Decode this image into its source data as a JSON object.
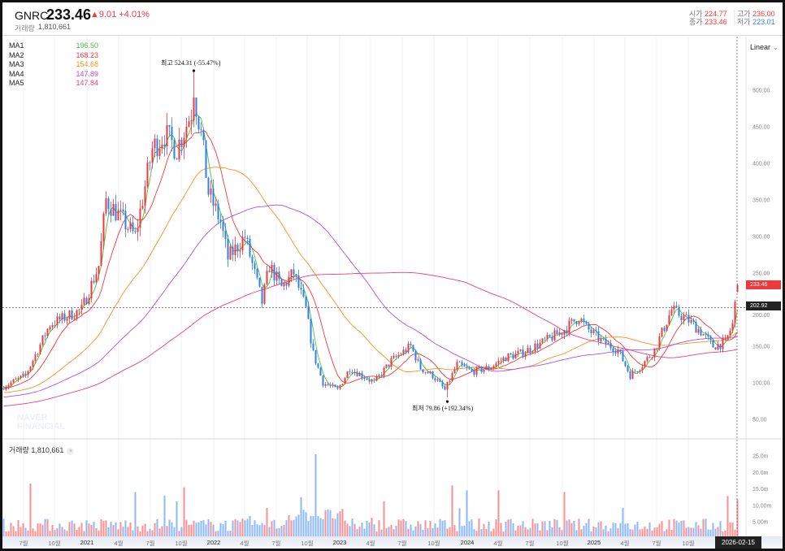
{
  "header": {
    "symbol": "GNRC",
    "price": "233.46",
    "change": "▲9.01 +4.01%",
    "volume_label": "거래량",
    "volume": "1,810,661",
    "open_label": "시가",
    "open": "224.77",
    "high_label": "고가",
    "high": "236.00",
    "close_label": "종가",
    "close": "233.46",
    "low_label": "저가",
    "low": "223.01"
  },
  "legend": [
    {
      "name": "MA1",
      "value": "196.50",
      "color": "#4cc03c"
    },
    {
      "name": "MA2",
      "value": "168.23",
      "color": "#f0393c"
    },
    {
      "name": "MA3",
      "value": "154.68",
      "color": "#f7931e"
    },
    {
      "name": "MA4",
      "value": "147.89",
      "color": "#a855e0"
    },
    {
      "name": "MA5",
      "value": "147.84",
      "color": "#ec3f7c"
    }
  ],
  "scale_mode": "Linear",
  "watermark": [
    "NAVER",
    "FINANCIAL"
  ],
  "volume_pane": {
    "label": "거래량 1,810,661",
    "close_icon": "×"
  },
  "annotations": {
    "high": "최고  524.31 (-55.47%)",
    "low": "최저  79.86 (+192.34%)"
  },
  "tags": {
    "last": "233.46",
    "crosshair": "202.92"
  },
  "colors": {
    "up": "#f0393c",
    "down": "#2f80ed"
  },
  "chart_data": {
    "type": "candlestick",
    "interval": "weekly",
    "price_axis": {
      "ticks": [
        "500.00",
        "450.00",
        "400.00",
        "350.00",
        "300.00",
        "250.00",
        "200.00",
        "150.00",
        "100.00",
        "50.00"
      ],
      "range": [
        30,
        555
      ]
    },
    "volume_axis": {
      "ticks": [
        "25.0m",
        "20.0m",
        "15.0m",
        "10.00m",
        "5.00m"
      ]
    },
    "x_ticks": [
      "7월",
      "10월",
      "2021",
      "4월",
      "7월",
      "10월",
      "2022",
      "4월",
      "7월",
      "10월",
      "2023",
      "4월",
      "7월",
      "10월",
      "2024",
      "4월",
      "7월",
      "10월",
      "2025",
      "4월",
      "7월",
      "10월"
    ],
    "cursor_date": "2026-02-15",
    "last_candle": {
      "open": 224.77,
      "high": 236.0,
      "low": 223.01,
      "close": 233.46
    },
    "all_time_high": 524.31,
    "all_time_low": 79.86,
    "price_path_weekly": [
      [
        0,
        95
      ],
      [
        9,
        110
      ],
      [
        19,
        180
      ],
      [
        32,
        200
      ],
      [
        39,
        260
      ],
      [
        42,
        350
      ],
      [
        47,
        330
      ],
      [
        54,
        300
      ],
      [
        61,
        420
      ],
      [
        66,
        440
      ],
      [
        71,
        420
      ],
      [
        77,
        470
      ],
      [
        78,
        500
      ],
      [
        81,
        440
      ],
      [
        84,
        360
      ],
      [
        89,
        320
      ],
      [
        92,
        270
      ],
      [
        99,
        300
      ],
      [
        106,
        210
      ],
      [
        109,
        260
      ],
      [
        114,
        230
      ],
      [
        119,
        250
      ],
      [
        124,
        200
      ],
      [
        127,
        140
      ],
      [
        131,
        100
      ],
      [
        137,
        90
      ],
      [
        142,
        120
      ],
      [
        147,
        110
      ],
      [
        152,
        100
      ],
      [
        159,
        130
      ],
      [
        167,
        150
      ],
      [
        171,
        120
      ],
      [
        176,
        110
      ],
      [
        181,
        90
      ],
      [
        186,
        125
      ],
      [
        192,
        115
      ],
      [
        199,
        120
      ],
      [
        206,
        135
      ],
      [
        212,
        140
      ],
      [
        221,
        155
      ],
      [
        229,
        170
      ],
      [
        236,
        190
      ],
      [
        239,
        175
      ],
      [
        246,
        155
      ],
      [
        252,
        145
      ],
      [
        257,
        110
      ],
      [
        262,
        125
      ],
      [
        267,
        145
      ],
      [
        274,
        200
      ],
      [
        281,
        185
      ],
      [
        286,
        170
      ],
      [
        291,
        150
      ],
      [
        296,
        155
      ],
      [
        299,
        180
      ],
      [
        301,
        233.46
      ]
    ]
  }
}
